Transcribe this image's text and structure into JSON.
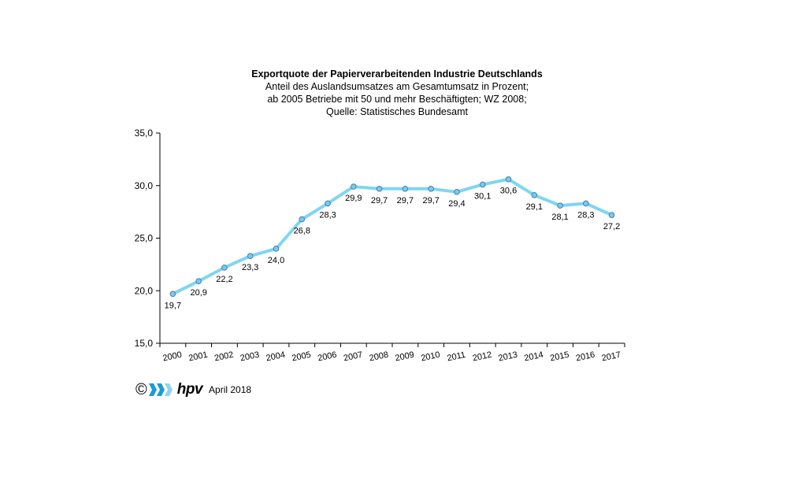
{
  "titles": {
    "title": "Exportquote der Papierverarbeitenden Industrie Deutschlands",
    "subtitle1": "Anteil des Auslandsumsatzes am Gesamtumsatz in Prozent;",
    "subtitle2": "ab 2005 Betriebe mit 50 und mehr Beschäftigten; WZ 2008;",
    "source": "Quelle: Statistisches Bundesamt"
  },
  "footer": {
    "copyright": "©",
    "brand": "hpv",
    "date": "April 2018",
    "logo_icon": "hpv-chevron-logo-icon"
  },
  "colors": {
    "line": "#7FD6F2",
    "marker_fill": "#7EC8EA",
    "marker_stroke": "#3D7FB3",
    "axis": "#000000"
  },
  "chart_data": {
    "type": "line",
    "categories": [
      "2000",
      "2001",
      "2002",
      "2003",
      "2004",
      "2005",
      "2006",
      "2007",
      "2008",
      "2009",
      "2010",
      "2011",
      "2012",
      "2013",
      "2014",
      "2015",
      "2016",
      "2017"
    ],
    "values": [
      19.7,
      20.9,
      22.2,
      23.3,
      24.0,
      26.8,
      28.3,
      29.9,
      29.7,
      29.7,
      29.7,
      29.4,
      30.1,
      30.6,
      29.1,
      28.1,
      28.3,
      27.2
    ],
    "data_labels": [
      "19,7",
      "20,9",
      "22,2",
      "23,3",
      "24,0",
      "26,8",
      "28,3",
      "29,9",
      "29,7",
      "29,7",
      "29,7",
      "29,4",
      "30,1",
      "30,6",
      "29,1",
      "28,1",
      "28,3",
      "27,2"
    ],
    "y_ticks": [
      "15,0",
      "20,0",
      "25,0",
      "30,0",
      "35,0"
    ],
    "y_tick_values": [
      15,
      20,
      25,
      30,
      35
    ],
    "ylim": [
      15,
      35
    ],
    "xlabel": "",
    "ylabel": "",
    "grid": false,
    "legend": "none"
  }
}
